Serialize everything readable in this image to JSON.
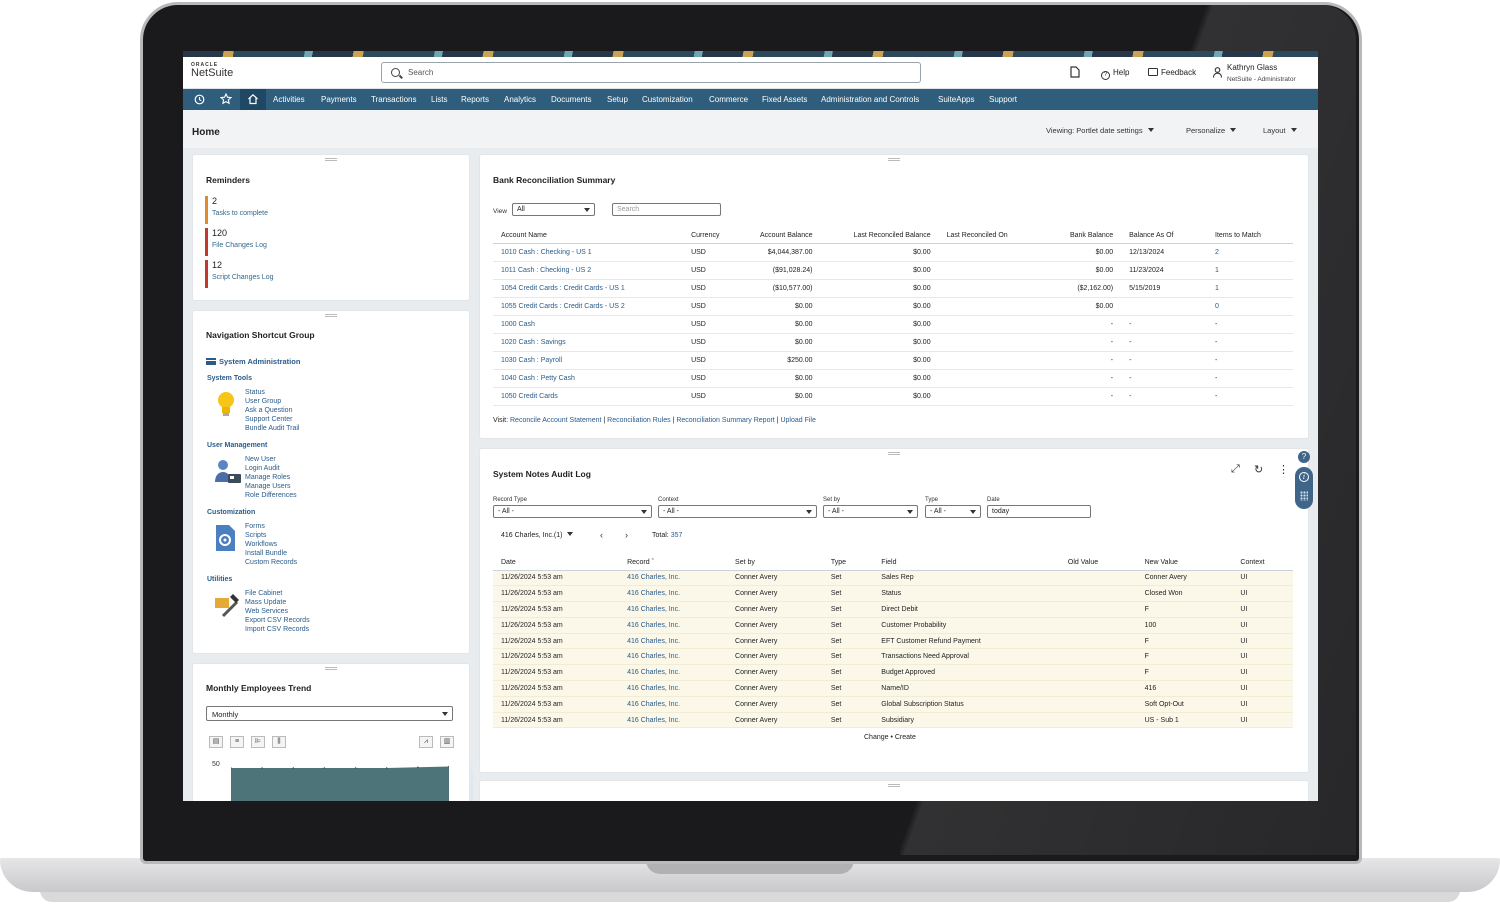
{
  "app": {
    "logo_brand": "ORACLE",
    "logo_name": "NetSuite",
    "search_placeholder": "Search",
    "help": "Help",
    "feedback": "Feedback",
    "user_name": "Kathryn Glass",
    "user_role": "NetSuite - Administrator"
  },
  "nav": [
    "Activities",
    "Payments",
    "Transactions",
    "Lists",
    "Reports",
    "Analytics",
    "Documents",
    "Setup",
    "Customization",
    "Commerce",
    "Fixed Assets",
    "Administration and Controls",
    "SuiteApps",
    "Support"
  ],
  "page": {
    "title": "Home",
    "viewing": "Viewing: Portlet date settings",
    "personalize": "Personalize",
    "layout": "Layout"
  },
  "reminders": {
    "title": "Reminders",
    "items": [
      {
        "count": "2",
        "label": "Tasks to complete",
        "color": "#e08a2b"
      },
      {
        "count": "120",
        "label": "File Changes Log",
        "color": "#c0392b"
      },
      {
        "count": "12",
        "label": "Script Changes Log",
        "color": "#c0392b"
      }
    ]
  },
  "shortcuts": {
    "title": "Navigation Shortcut Group",
    "section": "System Administration",
    "groups": [
      {
        "title": "System Tools",
        "icon": "lightbulb-icon",
        "links": [
          "Status",
          "User Group",
          "Ask a Question",
          "Support Center",
          "Bundle Audit Trail"
        ]
      },
      {
        "title": "User Management",
        "icon": "users-icon",
        "links": [
          "New User",
          "Login Audit",
          "Manage Roles",
          "Manage Users",
          "Role Differences"
        ]
      },
      {
        "title": "Customization",
        "icon": "document-gear-icon",
        "links": [
          "Forms",
          "Scripts",
          "Workflows",
          "Install Bundle",
          "Custom Records"
        ]
      },
      {
        "title": "Utilities",
        "icon": "tools-icon",
        "links": [
          "File Cabinet",
          "Mass Update",
          "Web Services",
          "Export CSV Records",
          "Import CSV Records"
        ]
      }
    ]
  },
  "trend": {
    "title": "Monthly Employees Trend",
    "period": "Monthly",
    "y_tick": "50"
  },
  "chart_data": {
    "type": "area",
    "title": "Monthly Employees Trend",
    "yticks": [
      50
    ],
    "series": [
      {
        "values": [
          46,
          46,
          46,
          46,
          46,
          46,
          47,
          48
        ]
      }
    ]
  },
  "bank": {
    "title": "Bank Reconciliation Summary",
    "view_label": "View",
    "view_value": "All",
    "search_placeholder": "Search",
    "columns": [
      "Account Name",
      "Currency",
      "Account Balance",
      "Last Reconciled Balance",
      "Last Reconciled On",
      "Bank Balance",
      "Balance As Of",
      "Items to Match"
    ],
    "rows": [
      [
        "1010 Cash : Checking - US 1",
        "USD",
        "$4,044,387.00",
        "$0.00",
        "",
        "$0.00",
        "12/13/2024",
        "2"
      ],
      [
        "1011 Cash : Checking - US 2",
        "USD",
        "($91,028.24)",
        "$0.00",
        "",
        "$0.00",
        "11/23/2024",
        "1"
      ],
      [
        "1054 Credit Cards : Credit Cards - US 1",
        "USD",
        "($10,577.00)",
        "$0.00",
        "",
        "($2,162.00)",
        "5/15/2019",
        "1"
      ],
      [
        "1055 Credit Cards : Credit Cards - US 2",
        "USD",
        "$0.00",
        "$0.00",
        "",
        "$0.00",
        "",
        "0"
      ],
      [
        "1000 Cash",
        "USD",
        "$0.00",
        "$0.00",
        "",
        "-",
        "-",
        "-"
      ],
      [
        "1020 Cash : Savings",
        "USD",
        "$0.00",
        "$0.00",
        "",
        "-",
        "-",
        "-"
      ],
      [
        "1030 Cash : Payroll",
        "USD",
        "$250.00",
        "$0.00",
        "",
        "-",
        "-",
        "-"
      ],
      [
        "1040 Cash : Petty Cash",
        "USD",
        "$0.00",
        "$0.00",
        "",
        "-",
        "-",
        "-"
      ],
      [
        "1050 Credit Cards",
        "USD",
        "$0.00",
        "$0.00",
        "",
        "-",
        "-",
        "-"
      ]
    ],
    "visit_label": "Visit:",
    "visit_links": [
      "Reconcile Account Statement",
      "Reconciliation Rules",
      "Reconciliation Summary Report",
      "Upload File"
    ]
  },
  "audit": {
    "title": "System Notes Audit Log",
    "filters": {
      "record_type_label": "Record Type",
      "record_type_value": "- All -",
      "context_label": "Context",
      "context_value": "- All -",
      "set_by_label": "Set by",
      "set_by_value": "- All -",
      "type_label": "Type",
      "type_value": "- All -",
      "date_label": "Date",
      "date_value": "today"
    },
    "record_selector": "416 Charles, Inc.(1)",
    "total_label": "Total:",
    "total_value": "357",
    "columns": [
      "Date",
      "Record",
      "Set by",
      "Type",
      "Field",
      "Old Value",
      "New Value",
      "Context"
    ],
    "rows": [
      [
        "11/26/2024 5:53 am",
        "416 Charles, Inc.",
        "Conner Avery",
        "Set",
        "Sales Rep",
        "",
        "Conner Avery",
        "UI"
      ],
      [
        "11/26/2024 5:53 am",
        "416 Charles, Inc.",
        "Conner Avery",
        "Set",
        "Status",
        "",
        "Closed Won",
        "UI"
      ],
      [
        "11/26/2024 5:53 am",
        "416 Charles, Inc.",
        "Conner Avery",
        "Set",
        "Direct Debit",
        "",
        "F",
        "UI"
      ],
      [
        "11/26/2024 5:53 am",
        "416 Charles, Inc.",
        "Conner Avery",
        "Set",
        "Customer Probability",
        "",
        "100",
        "UI"
      ],
      [
        "11/26/2024 5:53 am",
        "416 Charles, Inc.",
        "Conner Avery",
        "Set",
        "EFT Customer Refund Payment",
        "",
        "F",
        "UI"
      ],
      [
        "11/26/2024 5:53 am",
        "416 Charles, Inc.",
        "Conner Avery",
        "Set",
        "Transactions Need Approval",
        "",
        "F",
        "UI"
      ],
      [
        "11/26/2024 5:53 am",
        "416 Charles, Inc.",
        "Conner Avery",
        "Set",
        "Budget Approved",
        "",
        "F",
        "UI"
      ],
      [
        "11/26/2024 5:53 am",
        "416 Charles, Inc.",
        "Conner Avery",
        "Set",
        "Name/ID",
        "",
        "416",
        "UI"
      ],
      [
        "11/26/2024 5:53 am",
        "416 Charles, Inc.",
        "Conner Avery",
        "Set",
        "Global Subscription Status",
        "",
        "Soft Opt-Out",
        "UI"
      ],
      [
        "11/26/2024 5:53 am",
        "416 Charles, Inc.",
        "Conner Avery",
        "Set",
        "Subsidiary",
        "",
        "US - Sub 1",
        "UI"
      ]
    ],
    "footer": "Change • Create"
  }
}
